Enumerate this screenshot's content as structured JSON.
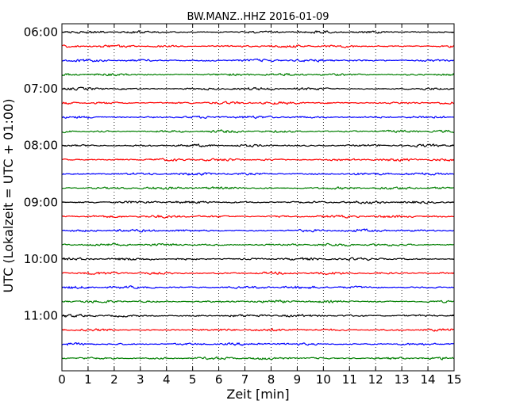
{
  "chart_data": {
    "type": "line",
    "title": "BW.MANZ..HHZ 2016-01-09",
    "xlabel": "Zeit  [min]",
    "ylabel": "UTC (Lokalzeit = UTC + 01:00)",
    "xlim": [
      0,
      15
    ],
    "x_ticks": [
      "0",
      "1",
      "2",
      "3",
      "4",
      "5",
      "6",
      "7",
      "8",
      "9",
      "10",
      "11",
      "12",
      "13",
      "14",
      "15"
    ],
    "y_ticks": [
      "06:00",
      "07:00",
      "08:00",
      "09:00",
      "10:00",
      "11:00"
    ],
    "trace_colors": [
      "#000000",
      "#ff0000",
      "#0000ff",
      "#007f00"
    ],
    "trace_count": 24,
    "grid": "vertical dotted",
    "legend": "none"
  }
}
